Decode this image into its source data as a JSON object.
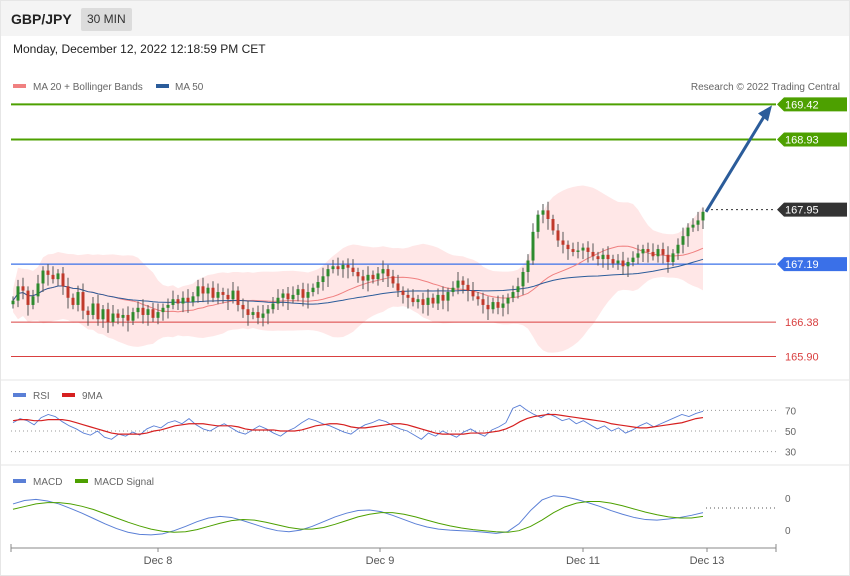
{
  "header": {
    "pair": "GBP/JPY",
    "timeframe": "30 MIN",
    "datetime": "Monday, December 12, 2022 12:18:59 PM CET"
  },
  "legend": {
    "ma20": "MA 20 + Bollinger Bands",
    "ma50": "MA 50",
    "credit": "Research © 2022 Trading Central",
    "rsi": "RSI",
    "rsi_ma": "9MA",
    "macd": "MACD",
    "macd_signal": "MACD Signal"
  },
  "colors": {
    "ma20": "#f08080",
    "ma50": "#2b5c9a",
    "band_fill": "#ffe4e4",
    "bull": "#2e8b2e",
    "bear": "#c0392b",
    "resistance": "#4da000",
    "support": "#d94040",
    "pivot": "#3a70e8",
    "current": "#333333",
    "arrow": "#2b5c9a",
    "rsi": "#5a7fd6",
    "rsi_ma": "#d62020",
    "macd": "#5a7fd6",
    "macd_signal": "#4da000"
  },
  "chart_data": [
    {
      "type": "candlestick",
      "title": "GBP/JPY",
      "ylim": [
        165.6,
        169.9
      ],
      "x_ticks": [
        "Dec 8",
        "Dec 9",
        "Dec 11",
        "Dec 13"
      ],
      "levels": [
        {
          "value": 169.42,
          "label": "169.42",
          "role": "resistance"
        },
        {
          "value": 168.93,
          "label": "168.93",
          "role": "resistance"
        },
        {
          "value": 167.95,
          "label": "167.95",
          "role": "current"
        },
        {
          "value": 167.19,
          "label": "167.19",
          "role": "pivot"
        },
        {
          "value": 166.38,
          "label": "166.38",
          "role": "support"
        },
        {
          "value": 165.9,
          "label": "165.90",
          "role": "support"
        }
      ],
      "ohlc_series": [
        166.68,
        166.88,
        166.82,
        166.62,
        166.74,
        166.92,
        167.1,
        167.04,
        166.98,
        167.06,
        166.88,
        166.72,
        166.62,
        166.8,
        166.54,
        166.48,
        166.64,
        166.42,
        166.56,
        166.38,
        166.5,
        166.44,
        166.48,
        166.4,
        166.52,
        166.58,
        166.48,
        166.56,
        166.44,
        166.52,
        166.58,
        166.62,
        166.7,
        166.64,
        166.72,
        166.66,
        166.74,
        166.88,
        166.78,
        166.86,
        166.72,
        166.8,
        166.76,
        166.7,
        166.82,
        166.62,
        166.56,
        166.48,
        166.52,
        166.44,
        166.5,
        166.56,
        166.64,
        166.72,
        166.78,
        166.7,
        166.76,
        166.84,
        166.72,
        166.8,
        166.86,
        166.94,
        167.02,
        167.12,
        167.16,
        167.12,
        167.18,
        167.14,
        167.08,
        167.02,
        166.96,
        167.04,
        166.98,
        167.06,
        167.12,
        167.02,
        166.92,
        166.82,
        166.76,
        166.72,
        166.66,
        166.7,
        166.62,
        166.72,
        166.64,
        166.76,
        166.68,
        166.8,
        166.86,
        166.96,
        166.9,
        166.82,
        166.74,
        166.7,
        166.62,
        166.56,
        166.66,
        166.58,
        166.64,
        166.72,
        166.8,
        166.88,
        167.08,
        167.24,
        167.64,
        167.88,
        167.94,
        167.82,
        167.66,
        167.52,
        167.46,
        167.4,
        167.36,
        167.38,
        167.42,
        167.36,
        167.3,
        167.26,
        167.32,
        167.26,
        167.2,
        167.24,
        167.16,
        167.22,
        167.28,
        167.34,
        167.4,
        167.36,
        167.3,
        167.4,
        167.32,
        167.22,
        167.34,
        167.46,
        167.58,
        167.7,
        167.74,
        167.8,
        167.92
      ],
      "ma20_last": 167.52,
      "ma50_last": 167.35
    },
    {
      "type": "line",
      "title": "RSI",
      "ylim": [
        20,
        80
      ],
      "y_ticks": [
        70,
        50,
        30
      ],
      "series": [
        {
          "name": "RSI",
          "values": [
            58,
            62,
            60,
            56,
            63,
            66,
            64,
            59,
            55,
            52,
            48,
            46,
            50,
            44,
            42,
            47,
            45,
            49,
            46,
            52,
            55,
            53,
            58,
            60,
            57,
            62,
            56,
            52,
            50,
            54,
            57,
            53,
            49,
            47,
            51,
            55,
            52,
            48,
            45,
            50,
            53,
            58,
            62,
            60,
            57,
            55,
            52,
            49,
            47,
            52,
            56,
            58,
            61,
            59,
            55,
            52,
            50,
            46,
            42,
            48,
            45,
            50,
            47,
            44,
            49,
            52,
            48,
            45,
            51,
            54,
            58,
            72,
            75,
            70,
            66,
            63,
            67,
            64,
            60,
            62,
            57,
            60,
            56,
            52,
            55,
            50,
            53,
            48,
            51,
            55,
            58,
            54,
            57,
            60,
            63,
            66,
            64,
            67,
            69
          ]
        },
        {
          "name": "9MA",
          "values": [
            60,
            61,
            61,
            60,
            60,
            61,
            61,
            61,
            60,
            58,
            56,
            54,
            52,
            50,
            48,
            47,
            47,
            47,
            47,
            48,
            50,
            51,
            53,
            55,
            56,
            57,
            57,
            57,
            56,
            55,
            55,
            55,
            54,
            52,
            51,
            51,
            51,
            51,
            50,
            50,
            50,
            51,
            53,
            55,
            56,
            57,
            57,
            56,
            54,
            53,
            53,
            54,
            55,
            56,
            57,
            57,
            56,
            54,
            52,
            50,
            48,
            47,
            47,
            47,
            47,
            48,
            48,
            48,
            49,
            50,
            52,
            55,
            59,
            62,
            64,
            65,
            66,
            66,
            65,
            64,
            63,
            62,
            61,
            60,
            59,
            57,
            56,
            55,
            54,
            53,
            53,
            54,
            55,
            56,
            57,
            58,
            60,
            62,
            63
          ]
        }
      ]
    },
    {
      "type": "line",
      "title": "MACD",
      "ylim": [
        -1,
        1
      ],
      "y_ticks": [
        0,
        0
      ],
      "series": [
        {
          "name": "MACD",
          "values": [
            0.55,
            0.68,
            0.72,
            0.66,
            0.55,
            0.38,
            0.2,
            0.0,
            -0.2,
            -0.38,
            -0.52,
            -0.6,
            -0.62,
            -0.58,
            -0.46,
            -0.3,
            -0.12,
            0.02,
            0.08,
            0.04,
            -0.08,
            -0.22,
            -0.36,
            -0.46,
            -0.5,
            -0.44,
            -0.3,
            -0.12,
            0.06,
            0.2,
            0.3,
            0.32,
            0.26,
            0.12,
            -0.04,
            -0.2,
            -0.32,
            -0.4,
            -0.44,
            -0.46,
            -0.48,
            -0.52,
            -0.56,
            -0.5,
            -0.2,
            0.3,
            0.7,
            0.86,
            0.82,
            0.72,
            0.6,
            0.46,
            0.3,
            0.16,
            0.04,
            -0.04,
            -0.06,
            -0.02,
            0.04,
            0.12,
            0.22
          ]
        },
        {
          "name": "MACD Signal",
          "values": [
            0.35,
            0.45,
            0.55,
            0.6,
            0.6,
            0.55,
            0.46,
            0.34,
            0.18,
            0.02,
            -0.14,
            -0.28,
            -0.4,
            -0.48,
            -0.52,
            -0.5,
            -0.42,
            -0.3,
            -0.18,
            -0.08,
            -0.04,
            -0.06,
            -0.14,
            -0.24,
            -0.34,
            -0.4,
            -0.4,
            -0.34,
            -0.22,
            -0.08,
            0.06,
            0.16,
            0.22,
            0.22,
            0.16,
            0.06,
            -0.06,
            -0.18,
            -0.28,
            -0.36,
            -0.42,
            -0.46,
            -0.5,
            -0.52,
            -0.46,
            -0.3,
            -0.06,
            0.22,
            0.44,
            0.58,
            0.64,
            0.64,
            0.58,
            0.48,
            0.36,
            0.24,
            0.14,
            0.06,
            0.02,
            0.02,
            0.08
          ]
        }
      ]
    }
  ]
}
